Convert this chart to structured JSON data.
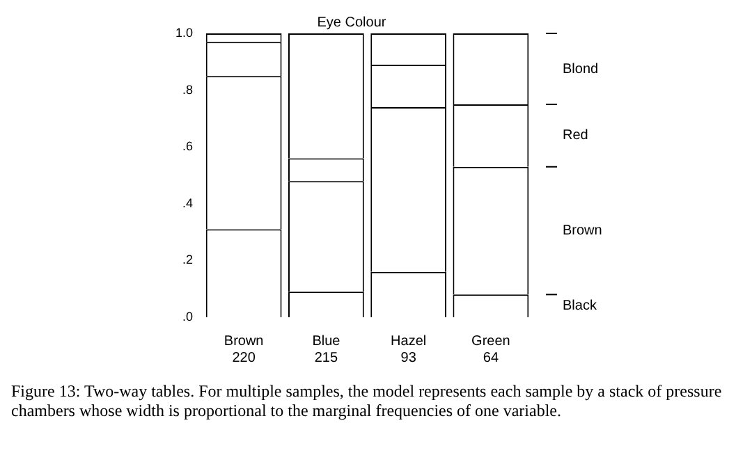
{
  "chart_data": {
    "type": "bar",
    "stacked": true,
    "title": "Eye Colour",
    "categories": [
      "Brown\n220",
      "Blue\n215",
      "Hazel\n93",
      "Green\n64"
    ],
    "series": [
      {
        "name": "Black",
        "color": "#ffffff",
        "values": [
          0.31,
          0.09,
          0.16,
          0.08
        ]
      },
      {
        "name": "Brown",
        "color": "#ffffff",
        "values": [
          0.54,
          0.39,
          0.58,
          0.45
        ]
      },
      {
        "name": "Red",
        "color": "#ffffff",
        "values": [
          0.12,
          0.08,
          0.15,
          0.22
        ]
      },
      {
        "name": "Blond",
        "color": "#ffffff",
        "values": [
          0.03,
          0.44,
          0.11,
          0.25
        ]
      }
    ],
    "ylim": [
      0,
      1
    ],
    "yticks": [
      {
        "value": 0,
        "label": ".0"
      },
      {
        "value": 0.2,
        "label": ".2"
      },
      {
        "value": 0.4,
        "label": ".4"
      },
      {
        "value": 0.6,
        "label": ".6"
      },
      {
        "value": 0.8,
        "label": ".8"
      },
      {
        "value": 1,
        "label": "1.0"
      }
    ],
    "grid": false,
    "annotations": [
      "Figure 13: Two-way tables. For multiple samples, the model represents each sample by a stack of pressure chambers whose width is proportional to the marginal frequencies of one variable."
    ]
  }
}
